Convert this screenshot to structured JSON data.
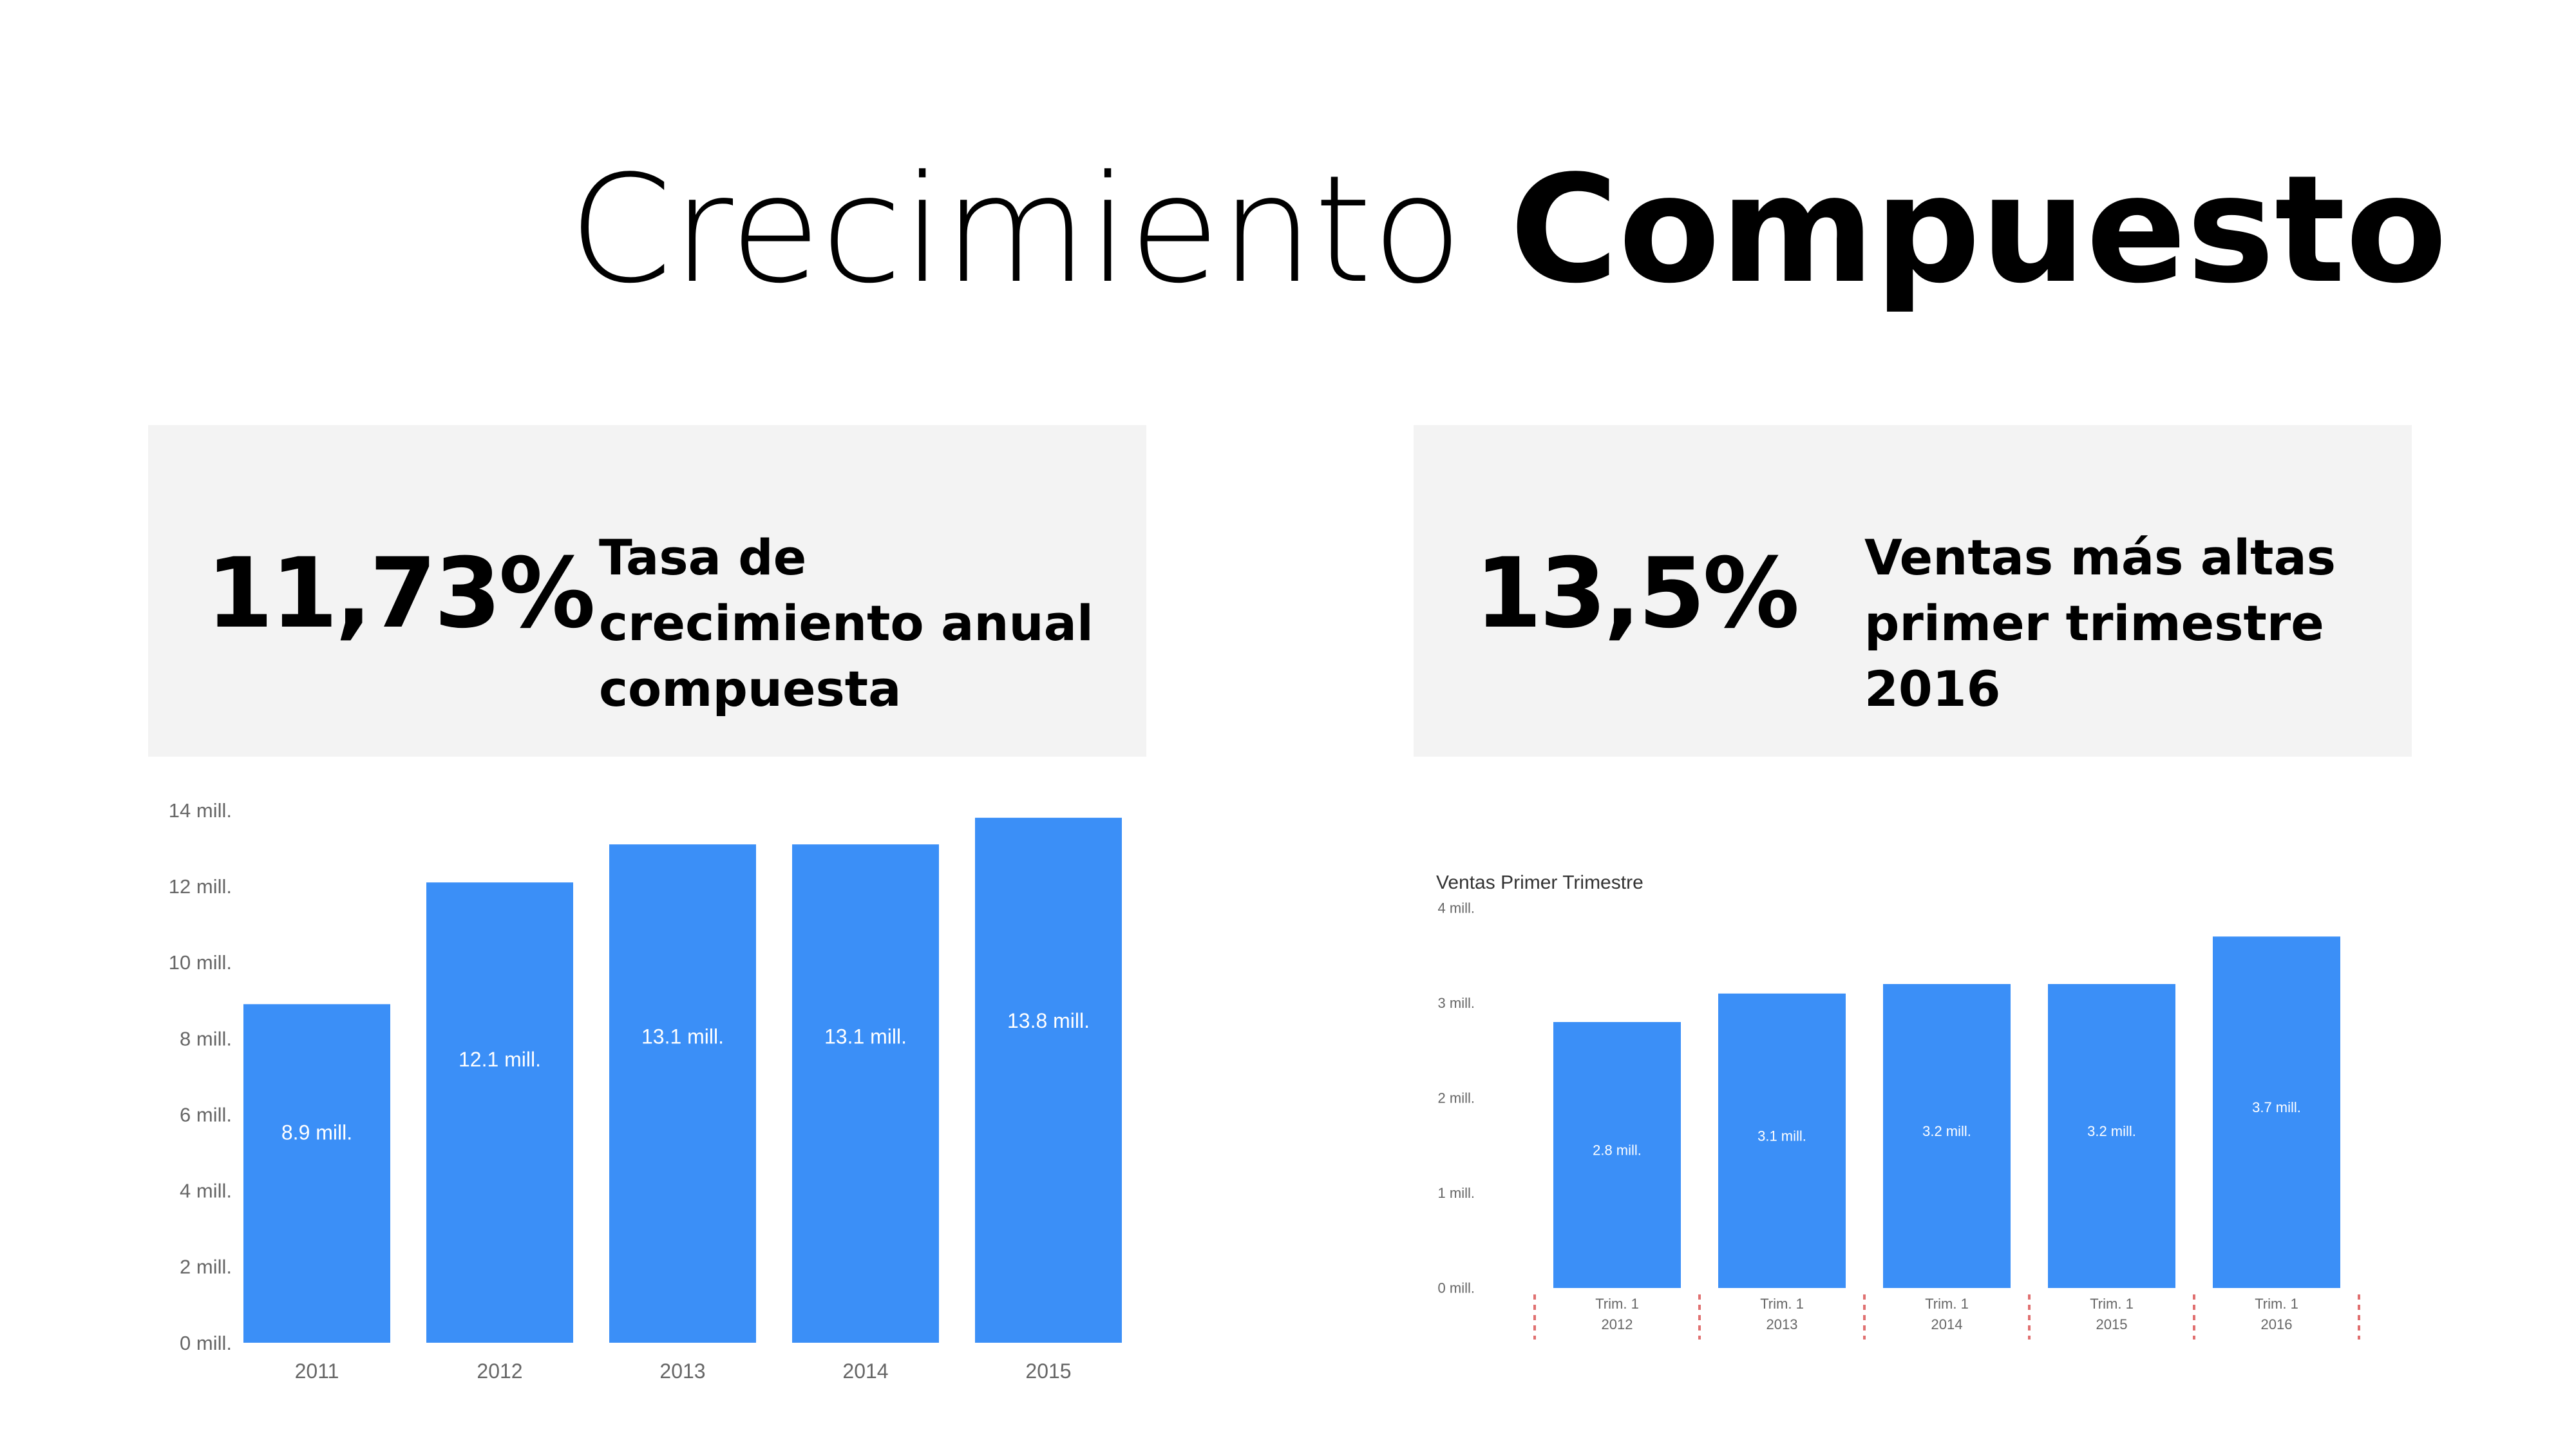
{
  "title": {
    "light": "Crecimiento",
    "bold": "Compuesto"
  },
  "kpis": [
    {
      "value": "11,73%",
      "label": "Tasa de crecimiento anual compuesta"
    },
    {
      "value": "13,5%",
      "label": "Ventas más altas primer trimestre 2016"
    }
  ],
  "colors": {
    "bar": "#3b8ff7",
    "card": "#f3f3f3",
    "axis_text": "#666666",
    "divider": "#e07070"
  },
  "chart_data": [
    {
      "type": "bar",
      "title": "",
      "categories": [
        "2011",
        "2012",
        "2013",
        "2014",
        "2015"
      ],
      "values": [
        8.9,
        12.1,
        13.1,
        13.1,
        13.8
      ],
      "data_labels": [
        "8.9 mill.",
        "12.1 mill.",
        "13.1 mill.",
        "13.1 mill.",
        "13.8 mill."
      ],
      "yticks": [
        0,
        2,
        4,
        6,
        8,
        10,
        12,
        14
      ],
      "ytick_labels": [
        "0 mill.",
        "2 mill.",
        "4 mill.",
        "6 mill.",
        "8 mill.",
        "10 mill.",
        "12 mill.",
        "14 mill."
      ],
      "ylim": [
        0,
        14
      ],
      "xlabel": "",
      "ylabel": ""
    },
    {
      "type": "bar",
      "title": "Ventas Primer Trimestre",
      "categories": [
        [
          "Trim. 1",
          "2012"
        ],
        [
          "Trim. 1",
          "2013"
        ],
        [
          "Trim. 1",
          "2014"
        ],
        [
          "Trim. 1",
          "2015"
        ],
        [
          "Trim. 1",
          "2016"
        ]
      ],
      "values": [
        2.8,
        3.1,
        3.2,
        3.2,
        3.7
      ],
      "data_labels": [
        "2.8 mill.",
        "3.1 mill.",
        "3.2 mill.",
        "3.2 mill.",
        "3.7 mill."
      ],
      "yticks": [
        0,
        1,
        2,
        3,
        4
      ],
      "ytick_labels": [
        "0 mill.",
        "1 mill.",
        "2 mill.",
        "3 mill.",
        "4 mill."
      ],
      "ylim": [
        0,
        4
      ],
      "xlabel": "",
      "ylabel": ""
    }
  ]
}
